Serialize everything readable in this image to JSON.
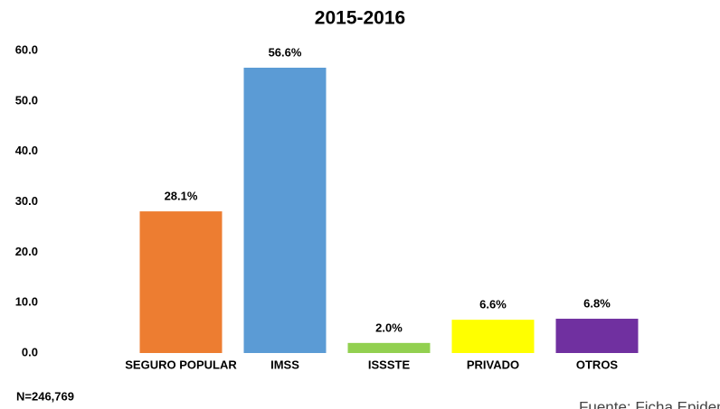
{
  "chart_data": {
    "type": "bar",
    "title": "2015-2016",
    "categories": [
      "SEGURO POPULAR",
      "IMSS",
      "ISSSTE",
      "PRIVADO",
      "OTROS"
    ],
    "values": [
      28.1,
      56.6,
      2.0,
      6.6,
      6.8
    ],
    "value_labels": [
      "28.1%",
      "56.6%",
      "2.0%",
      "6.6%",
      "6.8%"
    ],
    "colors": [
      "#ed7d31",
      "#5b9bd5",
      "#92d050",
      "#ffff00",
      "#7030a0"
    ],
    "ylim": [
      0,
      60
    ],
    "yticks": [
      {
        "value": 0,
        "label": "0.0"
      },
      {
        "value": 10,
        "label": "10.0"
      },
      {
        "value": 20,
        "label": "20.0"
      },
      {
        "value": 30,
        "label": "30.0"
      },
      {
        "value": 40,
        "label": "40.0"
      },
      {
        "value": 50,
        "label": "50.0"
      },
      {
        "value": 60,
        "label": "60.0"
      }
    ],
    "grid": false,
    "note": "N=246,769",
    "source": "Fuente: Ficha Epidemiológica"
  }
}
